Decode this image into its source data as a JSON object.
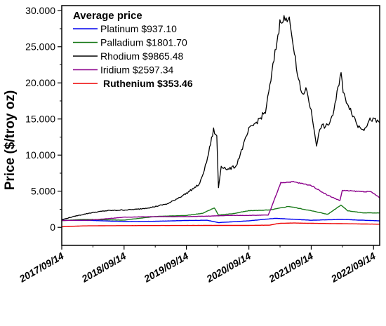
{
  "chart_data": {
    "type": "line",
    "ylabel": "Price ($/troy oz)",
    "xlabel": "",
    "ylim": [
      -2500,
      30700
    ],
    "xlim": [
      "2017-09-14",
      "2022-10-20"
    ],
    "y_ticks": [
      0,
      5000,
      10000,
      15000,
      20000,
      25000,
      30000
    ],
    "y_tick_labels": [
      "0",
      "5.000",
      "10.000",
      "15.000",
      "20.000",
      "25.000",
      "30.000"
    ],
    "x_ticks": [
      "2017-09-14",
      "2018-09-14",
      "2019-09-14",
      "2020-09-14",
      "2021-09-14",
      "2022-09-14"
    ],
    "x_tick_labels": [
      "2017/09/14",
      "2018/09/14",
      "2019/09/14",
      "2020/09/14",
      "2021/09/14",
      "2022/09/14"
    ],
    "legend": {
      "title": "Average price",
      "placement": "top-left"
    },
    "series": [
      {
        "name": "Platinum $937.10",
        "color": "#0000ee",
        "bold": false,
        "points": [
          [
            "2017-09-14",
            980
          ],
          [
            "2018-03-01",
            960
          ],
          [
            "2018-09-14",
            800
          ],
          [
            "2019-03-01",
            830
          ],
          [
            "2019-09-14",
            950
          ],
          [
            "2020-01-15",
            980
          ],
          [
            "2020-03-20",
            650
          ],
          [
            "2020-09-14",
            900
          ],
          [
            "2021-02-15",
            1250
          ],
          [
            "2021-09-14",
            980
          ],
          [
            "2022-03-10",
            1100
          ],
          [
            "2022-10-20",
            900
          ]
        ]
      },
      {
        "name": "Palladium $1801.70",
        "color": "#1a7a1a",
        "bold": false,
        "points": [
          [
            "2017-09-14",
            930
          ],
          [
            "2018-01-15",
            1100
          ],
          [
            "2018-09-14",
            1000
          ],
          [
            "2019-03-15",
            1500
          ],
          [
            "2019-09-14",
            1650
          ],
          [
            "2019-12-20",
            1950
          ],
          [
            "2020-02-25",
            2700
          ],
          [
            "2020-03-20",
            1700
          ],
          [
            "2020-06-15",
            1900
          ],
          [
            "2020-09-14",
            2300
          ],
          [
            "2021-01-15",
            2400
          ],
          [
            "2021-05-05",
            2900
          ],
          [
            "2021-09-14",
            2300
          ],
          [
            "2021-12-20",
            1800
          ],
          [
            "2022-03-07",
            3100
          ],
          [
            "2022-04-15",
            2300
          ],
          [
            "2022-07-15",
            2000
          ],
          [
            "2022-10-20",
            2000
          ]
        ]
      },
      {
        "name": "Rhodium $9865.48",
        "color": "#000000",
        "bold": false,
        "points": [
          [
            "2017-09-14",
            1050
          ],
          [
            "2017-12-01",
            1550
          ],
          [
            "2018-03-01",
            2000
          ],
          [
            "2018-06-01",
            2300
          ],
          [
            "2018-09-14",
            2400
          ],
          [
            "2018-12-01",
            2500
          ],
          [
            "2019-03-01",
            2800
          ],
          [
            "2019-06-01",
            3300
          ],
          [
            "2019-09-14",
            4700
          ],
          [
            "2019-12-01",
            6000
          ],
          [
            "2020-01-10",
            9000
          ],
          [
            "2020-02-20",
            13500
          ],
          [
            "2020-03-10",
            12500
          ],
          [
            "2020-03-20",
            5500
          ],
          [
            "2020-04-05",
            8500
          ],
          [
            "2020-05-15",
            8000
          ],
          [
            "2020-07-01",
            8500
          ],
          [
            "2020-09-14",
            13500
          ],
          [
            "2020-11-15",
            15000
          ],
          [
            "2020-12-20",
            16000
          ],
          [
            "2021-01-15",
            19500
          ],
          [
            "2021-02-20",
            25000
          ],
          [
            "2021-03-20",
            29000
          ],
          [
            "2021-05-15",
            28500
          ],
          [
            "2021-06-25",
            21000
          ],
          [
            "2021-07-20",
            18500
          ],
          [
            "2021-08-20",
            19000
          ],
          [
            "2021-09-14",
            16000
          ],
          [
            "2021-10-15",
            11500
          ],
          [
            "2021-11-10",
            14000
          ],
          [
            "2021-12-20",
            14000
          ],
          [
            "2022-01-25",
            16000
          ],
          [
            "2022-03-08",
            21800
          ],
          [
            "2022-03-20",
            18500
          ],
          [
            "2022-04-20",
            17000
          ],
          [
            "2022-06-15",
            14000
          ],
          [
            "2022-07-20",
            13700
          ],
          [
            "2022-08-30",
            15000
          ],
          [
            "2022-10-20",
            14500
          ]
        ]
      },
      {
        "name": "Iridium $2597.34",
        "color": "#8b008b",
        "bold": false,
        "points": [
          [
            "2017-09-14",
            950
          ],
          [
            "2018-03-01",
            1000
          ],
          [
            "2018-09-14",
            1400
          ],
          [
            "2019-03-01",
            1480
          ],
          [
            "2019-09-14",
            1480
          ],
          [
            "2020-01-15",
            1550
          ],
          [
            "2020-06-01",
            1650
          ],
          [
            "2020-09-14",
            1650
          ],
          [
            "2021-01-05",
            1700
          ],
          [
            "2021-01-20",
            2500
          ],
          [
            "2021-03-01",
            5000
          ],
          [
            "2021-03-20",
            6200
          ],
          [
            "2021-06-01",
            6300
          ],
          [
            "2021-09-14",
            5800
          ],
          [
            "2021-12-15",
            4500
          ],
          [
            "2022-03-01",
            3700
          ],
          [
            "2022-03-15",
            5100
          ],
          [
            "2022-06-01",
            5000
          ],
          [
            "2022-09-01",
            4900
          ],
          [
            "2022-10-20",
            4100
          ]
        ]
      },
      {
        "name": "Ruthenium $353.46",
        "color": "#ee0000",
        "bold": true,
        "points": [
          [
            "2017-09-14",
            80
          ],
          [
            "2018-01-15",
            200
          ],
          [
            "2018-09-14",
            240
          ],
          [
            "2019-09-14",
            260
          ],
          [
            "2020-09-14",
            270
          ],
          [
            "2021-01-15",
            300
          ],
          [
            "2021-02-25",
            500
          ],
          [
            "2021-03-20",
            560
          ],
          [
            "2021-06-01",
            600
          ],
          [
            "2021-09-14",
            560
          ],
          [
            "2022-04-01",
            500
          ],
          [
            "2022-10-20",
            430
          ]
        ]
      }
    ]
  }
}
